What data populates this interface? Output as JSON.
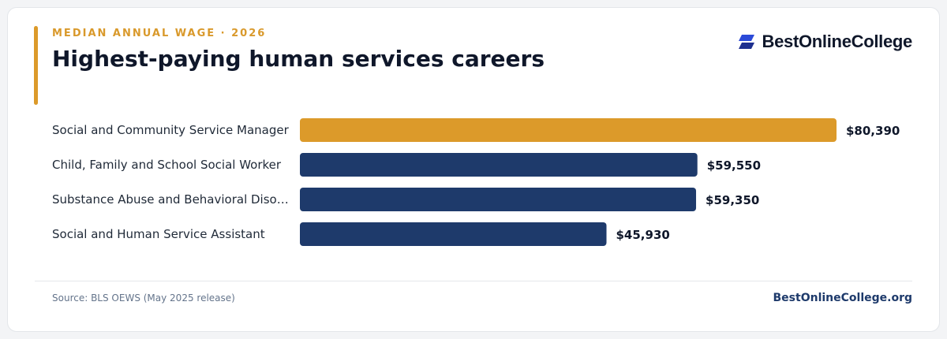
{
  "header": {
    "eyebrow": "MEDIAN ANNUAL WAGE · 2026",
    "title": "Highest-paying human services careers"
  },
  "brand": {
    "name": "BestOnlineCollege",
    "icon": "brand-logo-icon"
  },
  "footer": {
    "source": "Source: BLS OEWS (May 2025 release)",
    "site": "BestOnlineCollege.org"
  },
  "colors": {
    "accent": "#dc9a2a",
    "bar_primary": "#1e3a6b",
    "bar_highlight": "#dc9a2a"
  },
  "chart_data": {
    "type": "bar",
    "orientation": "horizontal",
    "categories": [
      "Social and Community Service Manager",
      "Child, Family and School Social Worker",
      "Substance Abuse and Behavioral Diso…",
      "Social and Human Service Assistant"
    ],
    "values": [
      80390,
      59550,
      59350,
      45930
    ],
    "value_labels": [
      "$80,390",
      "$59,550",
      "$59,350",
      "$45,930"
    ],
    "highlight_index": 0,
    "xlim": [
      0,
      80390
    ],
    "grid": false,
    "legend": "none"
  }
}
